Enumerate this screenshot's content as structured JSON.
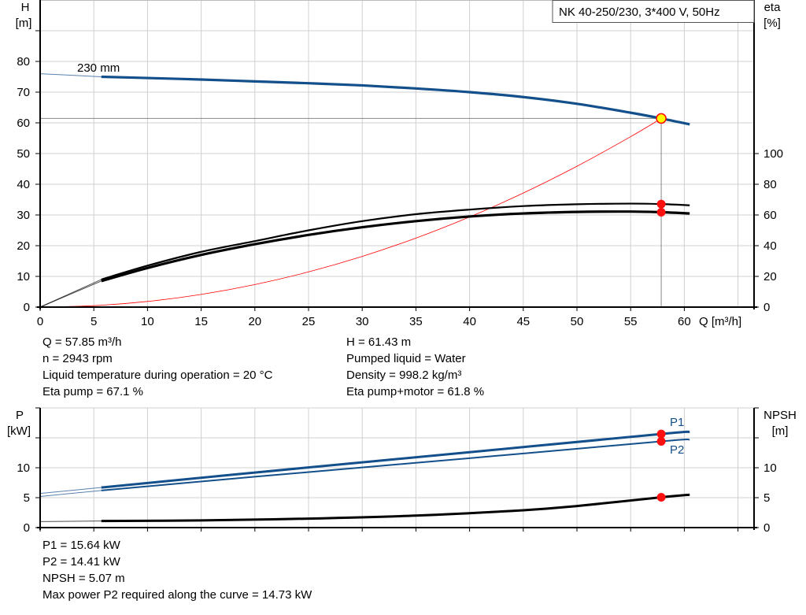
{
  "title": "NK 40-250/230, 3*400 V, 50Hz",
  "chart_data": [
    {
      "type": "line",
      "panel": "head-efficiency",
      "xlabel": "Q [m³/h]",
      "ylabel_left": [
        "H",
        "[m]"
      ],
      "ylabel_right": [
        "eta",
        "[%]"
      ],
      "xlim": [
        0,
        65
      ],
      "x_ticks": [
        "0",
        "5",
        "10",
        "15",
        "20",
        "25",
        "30",
        "35",
        "40",
        "45",
        "50",
        "55",
        "60"
      ],
      "ylim_left": [
        0,
        90
      ],
      "y_ticks_left": [
        "0",
        "10",
        "20",
        "30",
        "40",
        "50",
        "60",
        "70",
        "80"
      ],
      "ylim_right": [
        0,
        180
      ],
      "y_ticks_right": [
        "0",
        "20",
        "40",
        "60",
        "80",
        "100"
      ],
      "grid": true,
      "curve_label": "230 mm",
      "series": [
        {
          "key": "H",
          "axis": "left",
          "color": "#134f8a",
          "x": [
            0,
            5.7,
            10,
            15,
            20,
            25,
            30,
            35,
            40,
            45,
            50,
            55,
            57.85,
            60.5
          ],
          "y": [
            76,
            75,
            74.6,
            74.1,
            73.5,
            72.9,
            72.2,
            71.2,
            70,
            68.4,
            66.2,
            63.3,
            61.43,
            59.5
          ]
        },
        {
          "key": "eta_pump",
          "axis": "right",
          "color": "#000000",
          "x": [
            0,
            5.7,
            10,
            15,
            20,
            25,
            30,
            35,
            40,
            45,
            50,
            55,
            57.85,
            60.5
          ],
          "y": [
            0,
            18,
            27,
            36,
            43,
            50,
            56,
            60.5,
            63.5,
            65.8,
            67,
            67.4,
            67.1,
            66.3
          ]
        },
        {
          "key": "eta_pump_motor",
          "axis": "right",
          "color": "#000000",
          "x": [
            0,
            5.7,
            10,
            15,
            20,
            25,
            30,
            35,
            40,
            45,
            50,
            55,
            57.85,
            60.5
          ],
          "y": [
            0,
            17,
            25.5,
            34,
            41,
            47,
            52,
            56,
            59,
            61,
            62,
            62.2,
            61.8,
            61
          ]
        },
        {
          "key": "system_curve",
          "axis": "left",
          "color": "#ff0000",
          "x": [
            0,
            5,
            10,
            15,
            20,
            25,
            30,
            35,
            40,
            45,
            50,
            55,
            57.85
          ],
          "y": [
            0,
            0.46,
            1.84,
            4.13,
            7.34,
            11.47,
            16.51,
            22.47,
            29.36,
            37.15,
            45.87,
            55.5,
            61.43
          ]
        }
      ],
      "duty_point": {
        "Q": 57.85,
        "H": 61.43,
        "eta_pump": 67.1,
        "eta_pump_motor": 61.8
      }
    },
    {
      "type": "line",
      "panel": "power-npsh",
      "ylabel_left": [
        "P",
        "[kW]"
      ],
      "ylabel_right": [
        "NPSH",
        "[m]"
      ],
      "xlim": [
        0,
        65
      ],
      "ylim_left": [
        0,
        20
      ],
      "y_ticks_left": [
        "0",
        "5",
        "10"
      ],
      "ylim_right": [
        0,
        20
      ],
      "y_ticks_right": [
        "0",
        "5",
        "10"
      ],
      "grid": true,
      "series": [
        {
          "name": "P1",
          "axis": "left",
          "color": "#134f8a",
          "x": [
            0,
            5.7,
            20,
            40,
            57.85,
            60.5
          ],
          "y": [
            5.7,
            6.7,
            9.2,
            12.6,
            15.64,
            16.0
          ]
        },
        {
          "name": "P2",
          "axis": "left",
          "color": "#134f8a",
          "x": [
            0,
            5.7,
            20,
            40,
            57.85,
            60.5
          ],
          "y": [
            5.2,
            6.2,
            8.5,
            11.6,
            14.41,
            14.7
          ]
        },
        {
          "key": "NPSH",
          "axis": "right",
          "color": "#000000",
          "x": [
            0,
            5.7,
            15,
            25,
            35,
            45,
            50,
            57.85,
            60.5
          ],
          "y": [
            1.0,
            1.1,
            1.2,
            1.5,
            2.0,
            2.9,
            3.6,
            5.07,
            5.5
          ]
        }
      ],
      "duty_point": {
        "Q": 57.85,
        "P1": 15.64,
        "P2": 14.41,
        "NPSH": 5.07
      }
    }
  ],
  "results": {
    "left": [
      "Q = 57.85 m³/h",
      "n = 2943 rpm",
      "Liquid temperature during operation = 20 °C",
      "Eta pump = 67.1 %"
    ],
    "right": [
      "H = 61.43 m",
      "Pumped liquid = Water",
      "Density = 998.2 kg/m³",
      "Eta pump+motor = 61.8 %"
    ],
    "bottom": [
      "P1 = 15.64 kW",
      "P2 = 14.41 kW",
      "NPSH = 5.07 m",
      "Max power P2 required along the curve = 14.73 kW"
    ]
  }
}
